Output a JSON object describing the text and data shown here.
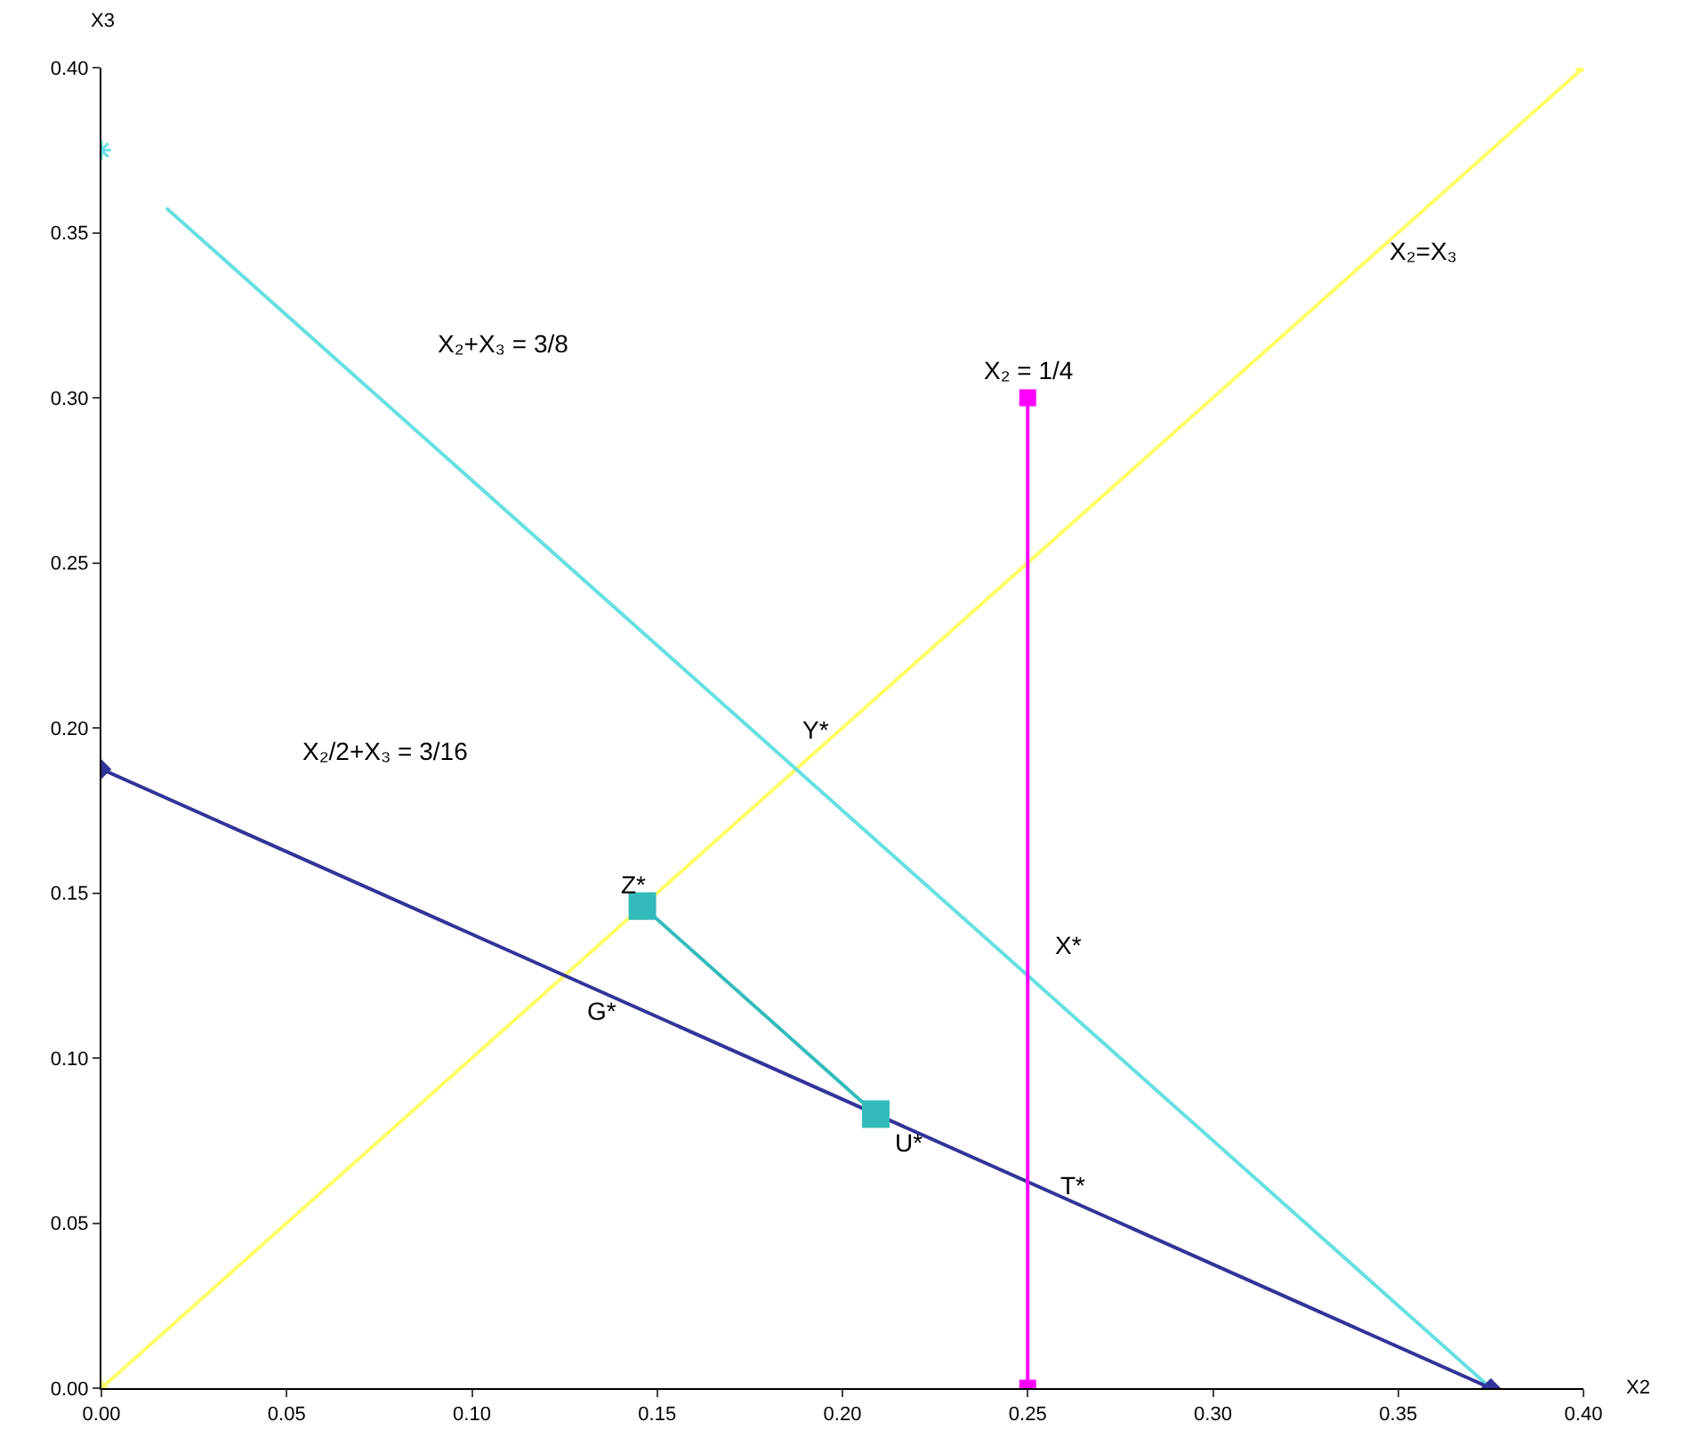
{
  "chart_data": {
    "type": "line",
    "xlabel": "X2",
    "ylabel": "X3",
    "xlim": [
      0,
      0.4
    ],
    "ylim": [
      0,
      0.4
    ],
    "xticks": [
      {
        "value": 0,
        "label": "0.00"
      },
      {
        "value": 0.05,
        "label": "0.05"
      },
      {
        "value": 0.1,
        "label": "0.10"
      },
      {
        "value": 0.15,
        "label": "0.15"
      },
      {
        "value": 0.2,
        "label": "0.20"
      },
      {
        "value": 0.25,
        "label": "0.25"
      },
      {
        "value": 0.3,
        "label": "0.30"
      },
      {
        "value": 0.35,
        "label": "0.35"
      },
      {
        "value": 0.4,
        "label": "0.40"
      }
    ],
    "yticks": [
      {
        "value": 0,
        "label": "0.00"
      },
      {
        "value": 0.05,
        "label": "0.05"
      },
      {
        "value": 0.1,
        "label": "0.10"
      },
      {
        "value": 0.15,
        "label": "0.15"
      },
      {
        "value": 0.2,
        "label": "0.20"
      },
      {
        "value": 0.25,
        "label": "0.25"
      },
      {
        "value": 0.3,
        "label": "0.30"
      },
      {
        "value": 0.35,
        "label": "0.35"
      },
      {
        "value": 0.4,
        "label": "0.40"
      }
    ],
    "grid": false,
    "legend": false,
    "series": [
      {
        "color": "#ffff66",
        "marker": "triangle",
        "x": [
          0,
          0.4
        ],
        "values": [
          0,
          0.4
        ]
      },
      {
        "color": "#66e0e0",
        "marker": "none",
        "x": [
          0.0175,
          0.375
        ],
        "values": [
          0.3575,
          0
        ]
      },
      {
        "type": "scatter",
        "color": "#66e0e0",
        "marker": "cross",
        "x": [
          0
        ],
        "values": [
          0.375
        ]
      },
      {
        "color": "#333399",
        "marker": "diamond",
        "x": [
          0,
          0.375
        ],
        "values": [
          0.1875,
          0
        ]
      },
      {
        "color": "#ff00ff",
        "marker": "square",
        "x": [
          0.25,
          0.25
        ],
        "values": [
          0,
          0.3
        ]
      },
      {
        "color": "#33bbbb",
        "marker": "square",
        "x": [
          0.146,
          0.209
        ],
        "values": [
          0.146,
          0.083
        ]
      }
    ],
    "annotations": [
      "X₂+X₃ = 3/8",
      "X₂=X₃",
      "X₂ = 1/4",
      "X₂/2+X₃ = 3/16",
      "Y*",
      "Z*",
      "G*",
      "X*",
      "U*",
      "T*"
    ]
  }
}
